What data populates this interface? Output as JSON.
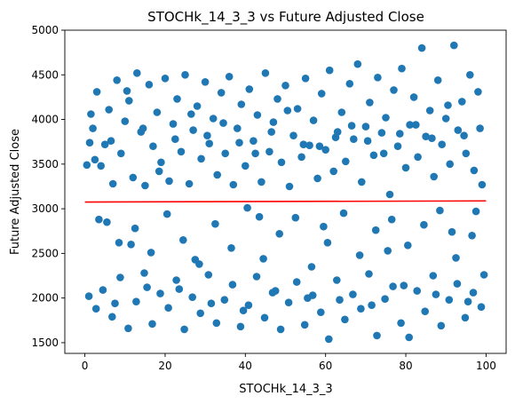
{
  "chart_data": {
    "type": "scatter",
    "title": "STOCHk_14_3_3 vs Future Adjusted Close",
    "xlabel": "STOCHk_14_3_3",
    "ylabel": "Future Adjusted Close",
    "xlim": [
      -5,
      105
    ],
    "ylim": [
      1380,
      5000
    ],
    "xticks": [
      0,
      20,
      40,
      60,
      80,
      100
    ],
    "yticks": [
      1500,
      2000,
      2500,
      3000,
      3500,
      4000,
      4500,
      5000
    ],
    "grid": false,
    "colors": {
      "points": "#1f77b4",
      "trend": "#ff0000"
    },
    "series": [
      {
        "values": [
          [
            0.5,
            3490
          ],
          [
            1.2,
            3740
          ],
          [
            1.5,
            4060
          ],
          [
            2.0,
            3900
          ],
          [
            2.5,
            3550
          ],
          [
            3.0,
            4310
          ],
          [
            4.0,
            3480
          ],
          [
            5.0,
            3720
          ],
          [
            6.0,
            4110
          ],
          [
            7.0,
            3280
          ],
          [
            8.0,
            4440
          ],
          [
            9.0,
            3620
          ],
          [
            10.0,
            3980
          ],
          [
            11.0,
            4210
          ],
          [
            12.0,
            3350
          ],
          [
            13.0,
            4520
          ],
          [
            14.0,
            3860
          ],
          [
            15.0,
            3260
          ],
          [
            16.0,
            4390
          ],
          [
            17.0,
            3700
          ],
          [
            18.0,
            4080
          ],
          [
            19.0,
            3520
          ],
          [
            20.0,
            4460
          ],
          [
            21.0,
            3310
          ],
          [
            22.0,
            3950
          ],
          [
            23.0,
            4230
          ],
          [
            24.0,
            3640
          ],
          [
            25.0,
            4500
          ],
          [
            26.0,
            3280
          ],
          [
            27.0,
            3880
          ],
          [
            28.0,
            4150
          ],
          [
            29.0,
            3560
          ],
          [
            30.0,
            4420
          ],
          [
            31.0,
            3730
          ],
          [
            32.0,
            4010
          ],
          [
            33.0,
            3380
          ],
          [
            34.0,
            4300
          ],
          [
            35.0,
            3620
          ],
          [
            36.0,
            4480
          ],
          [
            37.0,
            3270
          ],
          [
            38.0,
            3900
          ],
          [
            39.0,
            4170
          ],
          [
            40.0,
            3480
          ],
          [
            41.0,
            4340
          ],
          [
            42.0,
            3760
          ],
          [
            43.0,
            4050
          ],
          [
            44.0,
            3300
          ],
          [
            45.0,
            4520
          ],
          [
            46.0,
            3640
          ],
          [
            47.0,
            3970
          ],
          [
            48.0,
            4230
          ],
          [
            49.0,
            3520
          ],
          [
            50.0,
            4380
          ],
          [
            51.0,
            3250
          ],
          [
            52.0,
            3820
          ],
          [
            53.0,
            4120
          ],
          [
            54.0,
            3580
          ],
          [
            55.0,
            4460
          ],
          [
            56.0,
            3710
          ],
          [
            57.0,
            3990
          ],
          [
            58.0,
            3340
          ],
          [
            59.0,
            4290
          ],
          [
            60.0,
            3660
          ],
          [
            61.0,
            4550
          ],
          [
            62.0,
            3420
          ],
          [
            63.0,
            3860
          ],
          [
            64.0,
            4080
          ],
          [
            65.0,
            3530
          ],
          [
            66.0,
            4400
          ],
          [
            67.0,
            3780
          ],
          [
            68.0,
            4620
          ],
          [
            69.0,
            3300
          ],
          [
            70.0,
            3920
          ],
          [
            71.0,
            4190
          ],
          [
            72.0,
            3600
          ],
          [
            73.0,
            4470
          ],
          [
            74.0,
            3850
          ],
          [
            75.0,
            4020
          ],
          [
            76.0,
            3160
          ],
          [
            77.0,
            4330
          ],
          [
            78.0,
            3700
          ],
          [
            79.0,
            4570
          ],
          [
            80.0,
            3460
          ],
          [
            81.0,
            3940
          ],
          [
            82.0,
            4250
          ],
          [
            83.0,
            3580
          ],
          [
            84.0,
            4800
          ],
          [
            85.0,
            3810
          ],
          [
            86.0,
            4100
          ],
          [
            87.0,
            3360
          ],
          [
            88.0,
            4440
          ],
          [
            89.0,
            3720
          ],
          [
            90.0,
            4010
          ],
          [
            91.0,
            3500
          ],
          [
            92.0,
            4830
          ],
          [
            93.0,
            3880
          ],
          [
            94.0,
            4200
          ],
          [
            95.0,
            3620
          ],
          [
            96.0,
            4500
          ],
          [
            97.0,
            3430
          ],
          [
            98.0,
            4310
          ],
          [
            99.0,
            3270
          ],
          [
            6.5,
            3760
          ],
          [
            14.5,
            3900
          ],
          [
            22.5,
            3780
          ],
          [
            30.5,
            3820
          ],
          [
            38.5,
            3740
          ],
          [
            46.5,
            3860
          ],
          [
            54.5,
            3720
          ],
          [
            62.5,
            3800
          ],
          [
            70.5,
            3760
          ],
          [
            78.5,
            3840
          ],
          [
            86.5,
            3790
          ],
          [
            94.5,
            3820
          ],
          [
            10.5,
            4320
          ],
          [
            26.5,
            4060
          ],
          [
            42.5,
            3620
          ],
          [
            58.5,
            3700
          ],
          [
            74.5,
            3620
          ],
          [
            90.5,
            4160
          ],
          [
            18.5,
            3420
          ],
          [
            34.5,
            3960
          ],
          [
            50.5,
            4100
          ],
          [
            66.5,
            3930
          ],
          [
            82.5,
            3940
          ],
          [
            98.5,
            3900
          ],
          [
            3.5,
            2880
          ],
          [
            5.5,
            2850
          ],
          [
            8.5,
            2620
          ],
          [
            12.5,
            2780
          ],
          [
            16.5,
            2510
          ],
          [
            20.5,
            2940
          ],
          [
            24.5,
            2650
          ],
          [
            28.5,
            2380
          ],
          [
            32.5,
            2830
          ],
          [
            36.5,
            2560
          ],
          [
            40.5,
            3010
          ],
          [
            44.5,
            2440
          ],
          [
            48.5,
            2720
          ],
          [
            52.5,
            2900
          ],
          [
            56.5,
            2350
          ],
          [
            60.5,
            2620
          ],
          [
            64.5,
            2950
          ],
          [
            68.5,
            2480
          ],
          [
            72.5,
            2760
          ],
          [
            76.5,
            2880
          ],
          [
            80.5,
            2590
          ],
          [
            84.5,
            2820
          ],
          [
            88.5,
            2980
          ],
          [
            92.5,
            2450
          ],
          [
            96.5,
            2700
          ],
          [
            97.5,
            2970
          ],
          [
            11.5,
            2600
          ],
          [
            27.5,
            2430
          ],
          [
            43.5,
            2910
          ],
          [
            59.5,
            2800
          ],
          [
            75.5,
            2530
          ],
          [
            91.5,
            2740
          ],
          [
            1.0,
            2020
          ],
          [
            2.8,
            1880
          ],
          [
            4.5,
            2090
          ],
          [
            6.8,
            1790
          ],
          [
            8.8,
            2230
          ],
          [
            10.8,
            1660
          ],
          [
            12.8,
            1960
          ],
          [
            14.8,
            2280
          ],
          [
            16.8,
            1710
          ],
          [
            18.8,
            2050
          ],
          [
            20.8,
            1890
          ],
          [
            22.8,
            2200
          ],
          [
            24.8,
            1650
          ],
          [
            26.8,
            2010
          ],
          [
            28.8,
            1830
          ],
          [
            30.8,
            2260
          ],
          [
            32.8,
            1720
          ],
          [
            34.8,
            1980
          ],
          [
            36.8,
            2150
          ],
          [
            38.8,
            1680
          ],
          [
            40.8,
            1920
          ],
          [
            42.8,
            2240
          ],
          [
            44.8,
            1780
          ],
          [
            46.8,
            2060
          ],
          [
            48.8,
            1650
          ],
          [
            50.8,
            1950
          ],
          [
            52.8,
            2180
          ],
          [
            54.8,
            1700
          ],
          [
            56.8,
            2030
          ],
          [
            58.8,
            1840
          ],
          [
            60.8,
            1540
          ],
          [
            62.8,
            2200
          ],
          [
            64.8,
            1760
          ],
          [
            66.8,
            2040
          ],
          [
            68.8,
            1880
          ],
          [
            70.8,
            2270
          ],
          [
            72.8,
            1580
          ],
          [
            74.8,
            1990
          ],
          [
            76.8,
            2130
          ],
          [
            78.8,
            1720
          ],
          [
            80.8,
            1560
          ],
          [
            82.8,
            2080
          ],
          [
            84.8,
            1850
          ],
          [
            86.8,
            2250
          ],
          [
            88.8,
            1690
          ],
          [
            90.8,
            1980
          ],
          [
            92.8,
            2160
          ],
          [
            94.8,
            1780
          ],
          [
            96.8,
            2060
          ],
          [
            98.8,
            1900
          ],
          [
            99.5,
            2260
          ],
          [
            7.5,
            1940
          ],
          [
            23.5,
            2100
          ],
          [
            39.5,
            1860
          ],
          [
            55.5,
            2000
          ],
          [
            71.5,
            1920
          ],
          [
            87.5,
            2040
          ],
          [
            15.5,
            2120
          ],
          [
            31.5,
            1940
          ],
          [
            47.5,
            2080
          ],
          [
            63.5,
            1980
          ],
          [
            79.5,
            2140
          ],
          [
            95.5,
            1960
          ]
        ]
      }
    ],
    "trend_line": {
      "x": [
        0,
        100
      ],
      "y": [
        3075,
        3088
      ]
    }
  }
}
